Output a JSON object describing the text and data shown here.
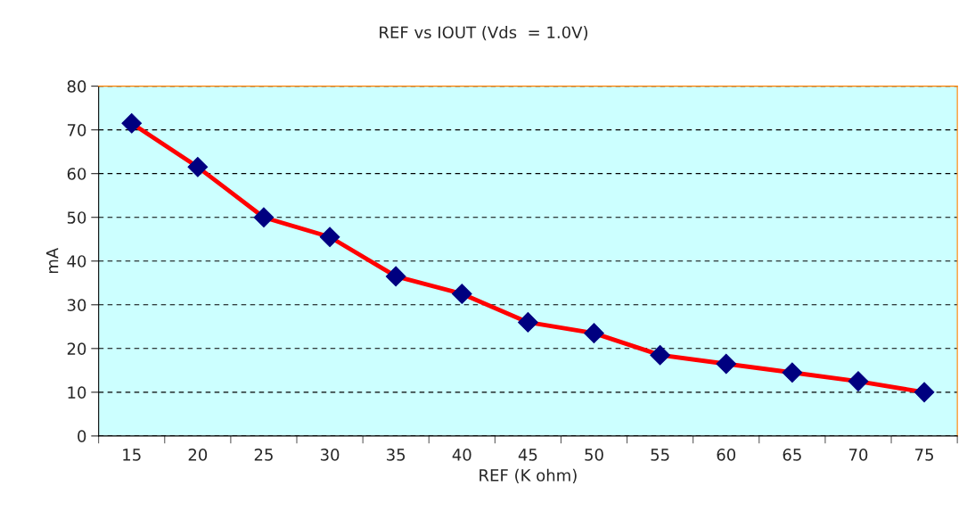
{
  "chart_data": {
    "type": "line",
    "title": "REF vs IOUT (Vds  = 1.0V)",
    "xlabel": "REF (K ohm)",
    "ylabel": "mA",
    "categories": [
      "15",
      "20",
      "25",
      "30",
      "35",
      "40",
      "45",
      "50",
      "55",
      "60",
      "65",
      "70",
      "75"
    ],
    "series": [
      {
        "color": "#ff0000",
        "values": [
          71.5,
          61.5,
          50,
          45.5,
          36.5,
          32.5,
          26,
          23.5,
          18.5,
          16.5,
          14.5,
          12.5,
          10
        ]
      }
    ],
    "ylim": [
      0,
      80
    ],
    "yticks": [
      0,
      10,
      20,
      30,
      40,
      50,
      60,
      70,
      80
    ],
    "grid": "y",
    "marker": "diamond",
    "line_style": "solid"
  }
}
